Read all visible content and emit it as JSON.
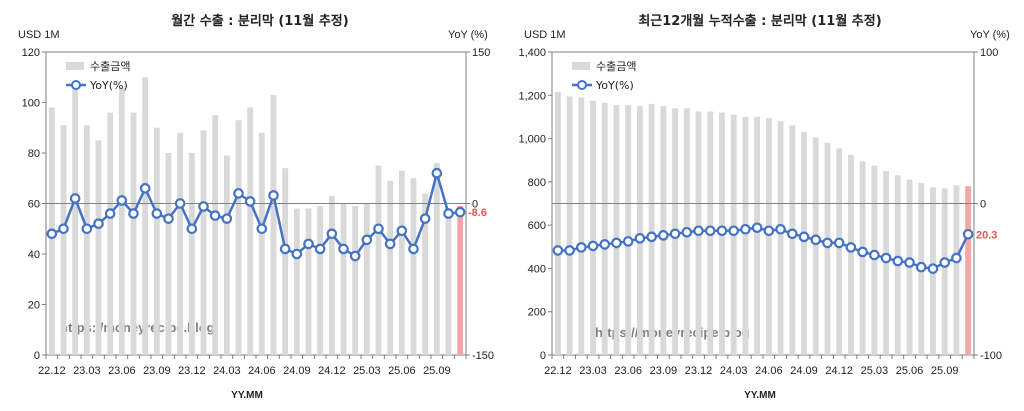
{
  "watermark": "https://moneyrecipe.blog",
  "x_axis_label": "YY.MM",
  "colors": {
    "bar": "#d9d9d9",
    "last_bar": "#f4a7a7",
    "line": "#4472c4",
    "marker_fill": "#ffffff",
    "zero_line": "#808080",
    "last_label": "#e05555",
    "axis": "#7f7f7f"
  },
  "chart_data": [
    {
      "type": "bar+line",
      "title": "월간 수출 : 분리막 (11월 추정)",
      "left_unit": "USD 1M",
      "right_unit": "YoY (%)",
      "left_ylim": [
        0,
        120
      ],
      "left_ticks": [
        "0",
        "20",
        "40",
        "60",
        "80",
        "100",
        "120"
      ],
      "right_ylim": [
        -150,
        150
      ],
      "right_ticks": [
        "-150",
        "0",
        "150"
      ],
      "x_tick_labels": [
        "22.12",
        "23.03",
        "23.06",
        "23.09",
        "23.12",
        "24.03",
        "24.06",
        "24.09",
        "24.12",
        "25.03",
        "25.06",
        "25.09"
      ],
      "legend": [
        "수출금액",
        "YoY(%)"
      ],
      "last_label": "-8.6",
      "bar_values": [
        98,
        91,
        108,
        91,
        85,
        96,
        106,
        96,
        110,
        90,
        80,
        88,
        80,
        89,
        95,
        79,
        93,
        98,
        88,
        103,
        74,
        58,
        58,
        59,
        63,
        60,
        59,
        60,
        75,
        69,
        73,
        70,
        64,
        76,
        58,
        59
      ],
      "line_values": [
        -30,
        -25,
        5,
        -25,
        -20,
        -10,
        3,
        -10,
        15,
        -10,
        -15,
        0,
        -25,
        -3,
        -12,
        -15,
        10,
        2,
        -25,
        8,
        -45,
        -50,
        -40,
        -45,
        -30,
        -45,
        -52,
        -36,
        -25,
        -40,
        -27,
        -45,
        -15,
        30,
        -10,
        -8.6
      ]
    },
    {
      "type": "bar+line",
      "title": "최근12개월 누적수출 : 분리막 (11월 추정)",
      "left_unit": "USD 1M",
      "right_unit": "YoY (%)",
      "left_ylim": [
        0,
        1400
      ],
      "left_ticks": [
        "0",
        "200",
        "400",
        "600",
        "800",
        "1,000",
        "1,200",
        "1,400"
      ],
      "right_ylim": [
        -100,
        100
      ],
      "right_ticks": [
        "-100",
        "0",
        "100"
      ],
      "x_tick_labels": [
        "22.12",
        "23.03",
        "23.06",
        "23.09",
        "23.12",
        "24.03",
        "24.06",
        "24.09",
        "24.12",
        "25.03",
        "25.06",
        "25.09"
      ],
      "legend": [
        "수출금액",
        "YoY(%)"
      ],
      "last_label": "20.3",
      "bar_values": [
        1215,
        1195,
        1190,
        1175,
        1165,
        1155,
        1155,
        1150,
        1160,
        1150,
        1140,
        1140,
        1125,
        1125,
        1120,
        1110,
        1100,
        1100,
        1095,
        1080,
        1060,
        1030,
        1005,
        980,
        955,
        925,
        895,
        875,
        850,
        830,
        810,
        795,
        775,
        770,
        785,
        780
      ],
      "line_values": [
        -31,
        -31,
        -29,
        -28,
        -27,
        -26,
        -25,
        -23,
        -22,
        -21,
        -20,
        -19,
        -18,
        -18,
        -18,
        -18,
        -17,
        -16,
        -18,
        -17,
        -20,
        -22,
        -24,
        -26,
        -26,
        -29,
        -32,
        -34,
        -36,
        -38,
        -39,
        -42,
        -43,
        -39,
        -36,
        -20.3
      ]
    }
  ]
}
